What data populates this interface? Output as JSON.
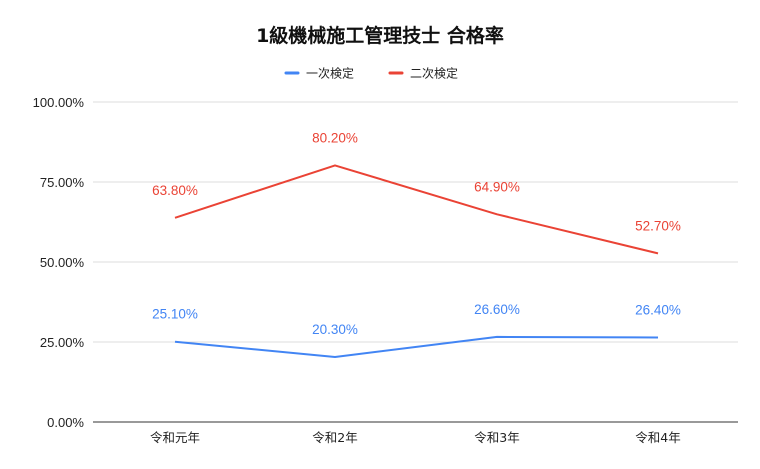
{
  "chart_data": {
    "type": "line",
    "title": "1級機械施工管理技士 合格率",
    "legend_position": "top",
    "categories": [
      "令和元年",
      "令和2年",
      "令和3年",
      "令和4年"
    ],
    "series": [
      {
        "name": "一次検定",
        "color": "#4285F4",
        "values": [
          25.1,
          20.3,
          26.6,
          26.4
        ],
        "labels": [
          "25.10%",
          "20.30%",
          "26.60%",
          "26.40%"
        ]
      },
      {
        "name": "二次検定",
        "color": "#EA4335",
        "values": [
          63.8,
          80.2,
          64.9,
          52.7
        ],
        "labels": [
          "63.80%",
          "80.20%",
          "64.90%",
          "52.70%"
        ]
      }
    ],
    "ylim": [
      0,
      100
    ],
    "yticks": [
      0,
      25,
      50,
      75,
      100
    ],
    "ytick_labels": [
      "0.00%",
      "25.00%",
      "50.00%",
      "75.00%",
      "100.00%"
    ],
    "grid": true
  }
}
